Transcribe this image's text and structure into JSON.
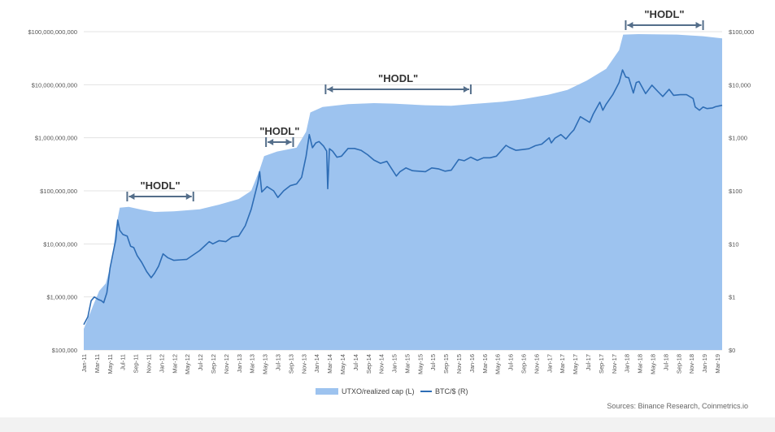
{
  "chart_data": {
    "type": "area",
    "x_ticks": [
      "Jan-11",
      "Mar-11",
      "May-11",
      "Jul-11",
      "Sep-11",
      "Nov-11",
      "Jan-12",
      "Mar-12",
      "May-12",
      "Jul-12",
      "Sep-12",
      "Nov-12",
      "Jan-13",
      "Mar-13",
      "May-13",
      "Jul-13",
      "Sep-13",
      "Nov-13",
      "Jan-14",
      "Mar-14",
      "May-14",
      "Jul-14",
      "Sep-14",
      "Nov-14",
      "Jan-15",
      "Mar-15",
      "May-15",
      "Jul-15",
      "Sep-15",
      "Nov-15",
      "Jan-16",
      "Mar-16",
      "May-16",
      "Jul-16",
      "Sep-16",
      "Nov-16",
      "Jan-17",
      "Mar-17",
      "May-17",
      "Jul-17",
      "Sep-17",
      "Nov-17",
      "Jan-18",
      "Mar-18",
      "May-18",
      "Jul-18",
      "Sep-18",
      "Nov-18",
      "Jan-19",
      "Mar-19"
    ],
    "y_left_ticks": [
      "$100,000",
      "$1,000,000",
      "$10,000,000",
      "$100,000,000",
      "$1,000,000,000",
      "$10,000,000,000",
      "$100,000,000,000"
    ],
    "y_right_ticks": [
      "$0",
      "$1",
      "$10",
      "$100",
      "$1,000",
      "$10,000",
      "$100,000"
    ],
    "y_left_scale": "log",
    "y_right_scale": "log",
    "grid": "horizontal",
    "legend_position": "bottom",
    "series": [
      {
        "name": "UTXO/realized cap (L)",
        "axis": "left",
        "type": "area",
        "color": "#9dc3ef",
        "points": [
          [
            "2011-01-01",
            250000
          ],
          [
            "2011-02-15",
            700000
          ],
          [
            "2011-03-15",
            1300000
          ],
          [
            "2011-04-15",
            1800000
          ],
          [
            "2011-05-15",
            5000000
          ],
          [
            "2011-06-01",
            20000000
          ],
          [
            "2011-06-20",
            48000000
          ],
          [
            "2011-08-01",
            50000000
          ],
          [
            "2011-10-01",
            44000000
          ],
          [
            "2011-12-01",
            40000000
          ],
          [
            "2012-03-01",
            41000000
          ],
          [
            "2012-07-01",
            45000000
          ],
          [
            "2012-10-01",
            55000000
          ],
          [
            "2013-01-01",
            70000000
          ],
          [
            "2013-03-01",
            100000000
          ],
          [
            "2013-04-10",
            250000000
          ],
          [
            "2013-05-01",
            450000000
          ],
          [
            "2013-07-01",
            550000000
          ],
          [
            "2013-10-01",
            650000000
          ],
          [
            "2013-11-15",
            1300000000
          ],
          [
            "2013-12-05",
            3000000000
          ],
          [
            "2014-02-01",
            3800000000
          ],
          [
            "2014-06-01",
            4300000000
          ],
          [
            "2014-10-01",
            4500000000
          ],
          [
            "2015-01-01",
            4400000000
          ],
          [
            "2015-06-01",
            4100000000
          ],
          [
            "2015-10-01",
            4000000000
          ],
          [
            "2016-01-01",
            4300000000
          ],
          [
            "2016-06-01",
            4800000000
          ],
          [
            "2016-09-01",
            5300000000
          ],
          [
            "2017-01-01",
            6500000000
          ],
          [
            "2017-04-01",
            8000000000
          ],
          [
            "2017-07-01",
            12000000000
          ],
          [
            "2017-10-01",
            20000000000
          ],
          [
            "2017-12-01",
            45000000000
          ],
          [
            "2017-12-20",
            88000000000
          ],
          [
            "2018-03-01",
            90000000000
          ],
          [
            "2018-09-01",
            88000000000
          ],
          [
            "2019-01-01",
            82000000000
          ],
          [
            "2019-04-01",
            75000000000
          ]
        ]
      },
      {
        "name": "BTC/$ (R)",
        "axis": "right",
        "type": "line",
        "color": "#2e6db5",
        "points": [
          [
            "2011-01-01",
            0.3
          ],
          [
            "2011-01-20",
            0.42
          ],
          [
            "2011-02-05",
            0.85
          ],
          [
            "2011-02-20",
            1.0
          ],
          [
            "2011-03-10",
            0.9
          ],
          [
            "2011-03-25",
            0.85
          ],
          [
            "2011-04-05",
            0.78
          ],
          [
            "2011-04-20",
            1.2
          ],
          [
            "2011-05-05",
            3.5
          ],
          [
            "2011-05-20",
            7.0
          ],
          [
            "2011-06-01",
            12
          ],
          [
            "2011-06-10",
            28
          ],
          [
            "2011-06-20",
            18
          ],
          [
            "2011-07-05",
            15
          ],
          [
            "2011-07-25",
            14
          ],
          [
            "2011-08-10",
            9
          ],
          [
            "2011-08-25",
            8.5
          ],
          [
            "2011-09-10",
            6
          ],
          [
            "2011-10-01",
            4.5
          ],
          [
            "2011-10-25",
            3
          ],
          [
            "2011-11-15",
            2.3
          ],
          [
            "2011-12-01",
            2.8
          ],
          [
            "2011-12-20",
            3.8
          ],
          [
            "2012-01-10",
            6.5
          ],
          [
            "2012-02-01",
            5.5
          ],
          [
            "2012-03-01",
            4.9
          ],
          [
            "2012-04-01",
            5.0
          ],
          [
            "2012-05-01",
            5.1
          ],
          [
            "2012-06-01",
            6.2
          ],
          [
            "2012-07-01",
            7.5
          ],
          [
            "2012-08-15",
            11
          ],
          [
            "2012-09-01",
            10
          ],
          [
            "2012-10-01",
            11.5
          ],
          [
            "2012-11-01",
            11
          ],
          [
            "2012-12-01",
            13.5
          ],
          [
            "2013-01-01",
            14
          ],
          [
            "2013-02-01",
            22
          ],
          [
            "2013-03-01",
            45
          ],
          [
            "2013-04-01",
            140
          ],
          [
            "2013-04-10",
            230
          ],
          [
            "2013-04-20",
            95
          ],
          [
            "2013-05-15",
            120
          ],
          [
            "2013-06-15",
            100
          ],
          [
            "2013-07-05",
            75
          ],
          [
            "2013-08-01",
            100
          ],
          [
            "2013-09-01",
            125
          ],
          [
            "2013-10-01",
            135
          ],
          [
            "2013-10-25",
            180
          ],
          [
            "2013-11-15",
            450
          ],
          [
            "2013-11-30",
            1150
          ],
          [
            "2013-12-15",
            650
          ],
          [
            "2013-12-31",
            800
          ],
          [
            "2014-01-15",
            850
          ],
          [
            "2014-02-05",
            700
          ],
          [
            "2014-02-20",
            560
          ],
          [
            "2014-02-25",
            110
          ],
          [
            "2014-03-05",
            620
          ],
          [
            "2014-03-20",
            560
          ],
          [
            "2014-04-10",
            430
          ],
          [
            "2014-05-01",
            450
          ],
          [
            "2014-06-01",
            630
          ],
          [
            "2014-07-01",
            630
          ],
          [
            "2014-08-01",
            580
          ],
          [
            "2014-09-01",
            480
          ],
          [
            "2014-10-01",
            380
          ],
          [
            "2014-11-01",
            330
          ],
          [
            "2014-12-01",
            360
          ],
          [
            "2015-01-15",
            190
          ],
          [
            "2015-02-01",
            230
          ],
          [
            "2015-03-01",
            270
          ],
          [
            "2015-04-01",
            240
          ],
          [
            "2015-05-01",
            235
          ],
          [
            "2015-06-01",
            230
          ],
          [
            "2015-07-01",
            270
          ],
          [
            "2015-08-01",
            260
          ],
          [
            "2015-09-01",
            235
          ],
          [
            "2015-10-01",
            245
          ],
          [
            "2015-11-05",
            390
          ],
          [
            "2015-12-01",
            370
          ],
          [
            "2016-01-01",
            430
          ],
          [
            "2016-02-01",
            375
          ],
          [
            "2016-03-01",
            420
          ],
          [
            "2016-04-01",
            420
          ],
          [
            "2016-05-01",
            450
          ],
          [
            "2016-06-15",
            720
          ],
          [
            "2016-07-01",
            660
          ],
          [
            "2016-08-01",
            580
          ],
          [
            "2016-09-01",
            600
          ],
          [
            "2016-10-01",
            620
          ],
          [
            "2016-11-01",
            710
          ],
          [
            "2016-12-01",
            760
          ],
          [
            "2017-01-05",
            1000
          ],
          [
            "2017-01-15",
            800
          ],
          [
            "2017-02-01",
            980
          ],
          [
            "2017-03-01",
            1150
          ],
          [
            "2017-03-25",
            950
          ],
          [
            "2017-04-15",
            1200
          ],
          [
            "2017-05-01",
            1400
          ],
          [
            "2017-06-01",
            2500
          ],
          [
            "2017-07-15",
            1950
          ],
          [
            "2017-08-01",
            2800
          ],
          [
            "2017-09-01",
            4700
          ],
          [
            "2017-09-15",
            3300
          ],
          [
            "2017-10-01",
            4300
          ],
          [
            "2017-11-01",
            6500
          ],
          [
            "2017-12-01",
            11000
          ],
          [
            "2017-12-17",
            19000
          ],
          [
            "2018-01-01",
            14000
          ],
          [
            "2018-01-15",
            13500
          ],
          [
            "2018-02-06",
            7000
          ],
          [
            "2018-02-20",
            11000
          ],
          [
            "2018-03-05",
            11500
          ],
          [
            "2018-04-05",
            6800
          ],
          [
            "2018-05-05",
            9800
          ],
          [
            "2018-06-01",
            7500
          ],
          [
            "2018-06-25",
            6000
          ],
          [
            "2018-07-25",
            8200
          ],
          [
            "2018-08-15",
            6300
          ],
          [
            "2018-09-15",
            6500
          ],
          [
            "2018-10-15",
            6500
          ],
          [
            "2018-11-15",
            5500
          ],
          [
            "2018-11-25",
            3800
          ],
          [
            "2018-12-15",
            3300
          ],
          [
            "2019-01-01",
            3800
          ],
          [
            "2019-01-20",
            3550
          ],
          [
            "2019-02-15",
            3650
          ],
          [
            "2019-03-01",
            3850
          ],
          [
            "2019-03-20",
            4000
          ],
          [
            "2019-04-01",
            4100
          ]
        ]
      }
    ],
    "annotations": [
      {
        "label": "\"HODL\"",
        "from": "2011-07-25",
        "to": "2012-06-01"
      },
      {
        "label": "\"HODL\"",
        "from": "2013-05-10",
        "to": "2013-09-15"
      },
      {
        "label": "\"HODL\"",
        "from": "2014-02-15",
        "to": "2016-01-01"
      },
      {
        "label": "\"HODL\"",
        "from": "2018-01-01",
        "to": "2019-01-01"
      }
    ]
  },
  "legend": {
    "area_label": "UTXO/realized cap (L)",
    "line_label": "BTC/$ (R)"
  },
  "source": "Sources: Binance Research, Coinmetrics.io"
}
